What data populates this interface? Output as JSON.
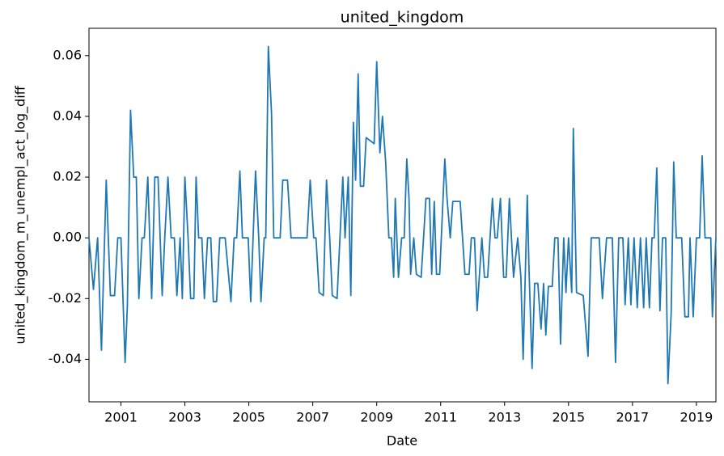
{
  "chart_data": {
    "type": "line",
    "title": "united_kingdom",
    "x_label": "Date",
    "y_label": "united_kingdom_m_unempl_act_log_diff",
    "color": "#1f77b4",
    "x": [
      2000.0,
      2000.14,
      2000.27,
      2000.39,
      2000.54,
      2000.67,
      2000.8,
      2000.9,
      2001.0,
      2001.13,
      2001.2,
      2001.3,
      2001.4,
      2001.48,
      2001.56,
      2001.66,
      2001.73,
      2001.84,
      2001.96,
      2002.06,
      2002.16,
      2002.29,
      2002.37,
      2002.47,
      2002.57,
      2002.67,
      2002.75,
      2002.85,
      2002.92,
      2003.0,
      2003.1,
      2003.18,
      2003.28,
      2003.35,
      2003.43,
      2003.53,
      2003.61,
      2003.71,
      2003.81,
      2003.89,
      2003.99,
      2004.09,
      2004.19,
      2004.26,
      2004.44,
      2004.54,
      2004.62,
      2004.72,
      2004.8,
      2004.9,
      2004.98,
      2005.06,
      2005.21,
      2005.31,
      2005.38,
      2005.48,
      2005.53,
      2005.61,
      2005.71,
      2005.78,
      2005.88,
      2005.98,
      2006.06,
      2006.21,
      2006.32,
      2006.57,
      2006.82,
      2006.92,
      2007.03,
      2007.1,
      2007.2,
      2007.33,
      2007.43,
      2007.53,
      2007.61,
      2007.76,
      2007.94,
      2008.01,
      2008.11,
      2008.19,
      2008.27,
      2008.34,
      2008.42,
      2008.49,
      2008.59,
      2008.67,
      2008.92,
      2009.0,
      2009.1,
      2009.18,
      2009.28,
      2009.38,
      2009.46,
      2009.53,
      2009.58,
      2009.68,
      2009.78,
      2009.86,
      2009.94,
      2010.01,
      2010.06,
      2010.16,
      2010.24,
      2010.39,
      2010.54,
      2010.65,
      2010.72,
      2010.8,
      2010.87,
      2010.97,
      2011.13,
      2011.2,
      2011.3,
      2011.38,
      2011.48,
      2011.61,
      2011.76,
      2011.89,
      2011.96,
      2012.06,
      2012.14,
      2012.29,
      2012.37,
      2012.47,
      2012.62,
      2012.7,
      2012.77,
      2012.87,
      2012.97,
      2013.05,
      2013.15,
      2013.28,
      2013.41,
      2013.51,
      2013.58,
      2013.71,
      2013.76,
      2013.86,
      2013.94,
      2014.04,
      2014.14,
      2014.22,
      2014.29,
      2014.37,
      2014.49,
      2014.57,
      2014.67,
      2014.75,
      2014.85,
      2014.92,
      2015.0,
      2015.1,
      2015.15,
      2015.25,
      2015.46,
      2015.61,
      2015.71,
      2015.96,
      2016.06,
      2016.19,
      2016.37,
      2016.47,
      2016.57,
      2016.7,
      2016.77,
      2016.87,
      2016.95,
      2017.05,
      2017.15,
      2017.25,
      2017.35,
      2017.43,
      2017.53,
      2017.61,
      2017.68,
      2017.76,
      2017.86,
      2017.94,
      2018.04,
      2018.11,
      2018.21,
      2018.29,
      2018.37,
      2018.54,
      2018.64,
      2018.75,
      2018.8,
      2018.9,
      2019.0,
      2019.1,
      2019.18,
      2019.27,
      2019.45,
      2019.5,
      2019.61
    ],
    "values": [
      0,
      -0.017,
      0,
      -0.037,
      0.019,
      -0.019,
      -0.019,
      0,
      0,
      -0.041,
      -0.0225,
      0.042,
      0.02,
      0.02,
      -0.02,
      0,
      0,
      0.02,
      -0.02,
      0.02,
      0.02,
      -0.019,
      0,
      0.02,
      0,
      0,
      -0.019,
      0,
      -0.02,
      0.02,
      0,
      -0.02,
      -0.02,
      0.02,
      0,
      0,
      -0.02,
      0,
      0,
      -0.021,
      -0.021,
      0,
      0,
      0,
      -0.021,
      0,
      0,
      0.022,
      0,
      0,
      0,
      -0.021,
      0.022,
      0,
      -0.021,
      0,
      0,
      0.063,
      0.041,
      0,
      0,
      0,
      0.019,
      0.019,
      0,
      0,
      0,
      0.019,
      0,
      0,
      -0.018,
      -0.019,
      0.019,
      0,
      -0.019,
      -0.02,
      0.02,
      0,
      0.02,
      -0.019,
      0.038,
      0.019,
      0.054,
      0.017,
      0.017,
      0.033,
      0.031,
      0.058,
      0.028,
      0.04,
      0.025,
      0,
      0,
      -0.013,
      0.013,
      -0.013,
      0,
      0,
      0.026,
      0.013,
      -0.012,
      0,
      -0.012,
      -0.013,
      0.013,
      0.013,
      -0.012,
      0.012,
      -0.012,
      -0.012,
      0.026,
      0.013,
      0,
      0.012,
      0.012,
      0.012,
      -0.012,
      -0.012,
      0,
      0,
      -0.024,
      0,
      -0.013,
      -0.013,
      0.013,
      0,
      0,
      0.013,
      -0.013,
      -0.013,
      0.013,
      -0.013,
      0,
      -0.013,
      -0.04,
      0.014,
      -0.009,
      -0.043,
      -0.015,
      -0.015,
      -0.03,
      -0.015,
      -0.032,
      -0.016,
      -0.016,
      0,
      0,
      -0.035,
      0,
      -0.018,
      0,
      -0.018,
      0.036,
      -0.018,
      -0.019,
      -0.039,
      0,
      0,
      -0.02,
      0,
      0,
      -0.041,
      0,
      0,
      -0.022,
      0,
      -0.022,
      0,
      -0.023,
      0,
      -0.023,
      0,
      -0.023,
      0,
      0,
      0.023,
      -0.024,
      0,
      0,
      -0.048,
      -0.025,
      0.025,
      0,
      0,
      -0.026,
      -0.026,
      0,
      -0.026,
      0,
      0,
      0.027,
      0,
      0,
      -0.026,
      0
    ],
    "xlim": [
      2000,
      2019.61
    ],
    "xticks": [
      2001,
      2003,
      2005,
      2007,
      2009,
      2011,
      2013,
      2015,
      2017,
      2019
    ],
    "ylim": [
      -0.054,
      0.069
    ],
    "yticks": [
      -0.04,
      -0.02,
      {
        "value": 0,
        "label": "0.00"
      },
      0.02,
      0.04,
      0.06
    ]
  }
}
